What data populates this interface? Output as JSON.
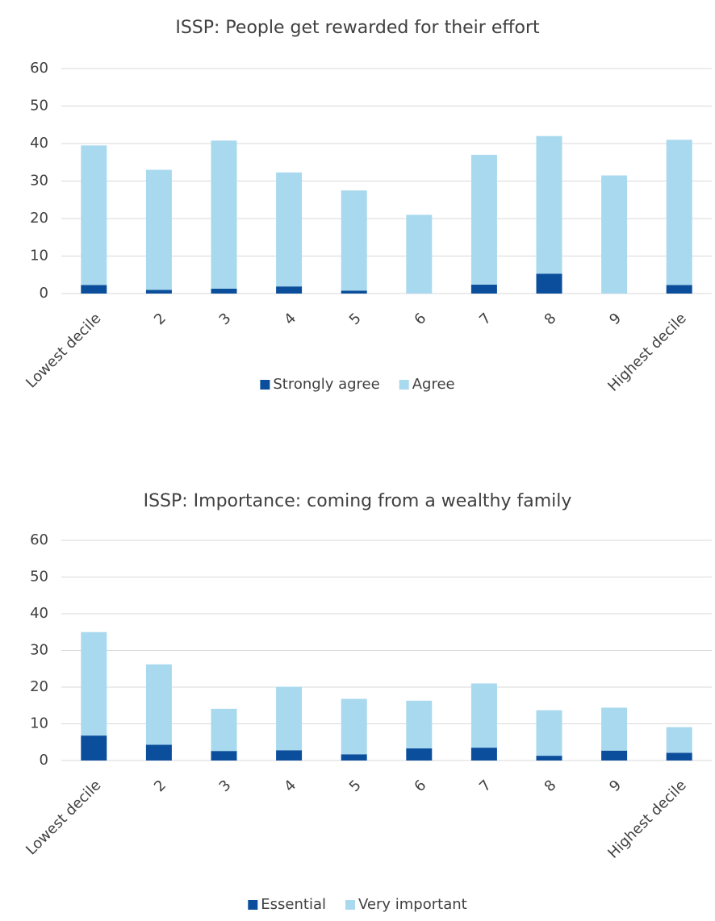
{
  "chart_data": [
    {
      "type": "bar",
      "stacked": true,
      "title": "ISSP: People get rewarded for their effort",
      "categories": [
        "Lowest decile",
        "2",
        "3",
        "4",
        "5",
        "6",
        "7",
        "8",
        "9",
        "Highest decile"
      ],
      "series": [
        {
          "name": "Strongly agree",
          "color": "#0b4f9c",
          "values": [
            2.3,
            1.0,
            1.3,
            1.9,
            0.8,
            0,
            2.4,
            5.3,
            0,
            2.3
          ]
        },
        {
          "name": "Agree",
          "color": "#a9d9ee",
          "values": [
            37.2,
            32.0,
            39.5,
            30.4,
            26.7,
            21.0,
            34.6,
            36.7,
            31.5,
            38.7
          ]
        }
      ],
      "ylim": [
        0,
        60
      ],
      "yticks": [
        0,
        10,
        20,
        30,
        40,
        50,
        60
      ],
      "grid": true,
      "legend": "bottom"
    },
    {
      "type": "bar",
      "stacked": true,
      "title": "ISSP: Importance: coming from a wealthy family",
      "categories": [
        "Lowest decile",
        "2",
        "3",
        "4",
        "5",
        "6",
        "7",
        "8",
        "9",
        "Highest decile"
      ],
      "series": [
        {
          "name": "Essential",
          "color": "#0b4f9c",
          "values": [
            6.8,
            4.3,
            2.6,
            2.8,
            1.7,
            3.3,
            3.5,
            1.3,
            2.7,
            2.1
          ]
        },
        {
          "name": "Very important",
          "color": "#a9d9ee",
          "values": [
            28.2,
            21.9,
            11.5,
            17.3,
            15.1,
            13.0,
            17.5,
            12.4,
            11.7,
            7.0
          ]
        }
      ],
      "ylim": [
        0,
        60
      ],
      "yticks": [
        0,
        10,
        20,
        30,
        40,
        50,
        60
      ],
      "grid": true,
      "legend": "bottom"
    }
  ]
}
